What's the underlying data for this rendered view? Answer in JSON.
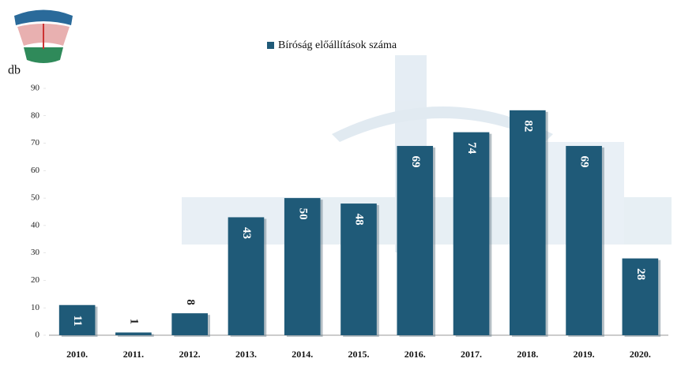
{
  "chart_data": {
    "type": "bar",
    "legend": "Bíróság előállítások száma",
    "ylabel": "db",
    "categories": [
      "2010.",
      "2011.",
      "2012.",
      "2013.",
      "2014.",
      "2015.",
      "2016.",
      "2017.",
      "2018.",
      "2019.",
      "2020."
    ],
    "values": [
      11,
      1,
      8,
      43,
      50,
      48,
      69,
      74,
      82,
      69,
      28
    ],
    "color": "#1f5a78",
    "ylim": [
      0,
      90
    ],
    "yticks": [
      0,
      10,
      20,
      30,
      40,
      50,
      60,
      70,
      80,
      90
    ],
    "grid": false
  }
}
